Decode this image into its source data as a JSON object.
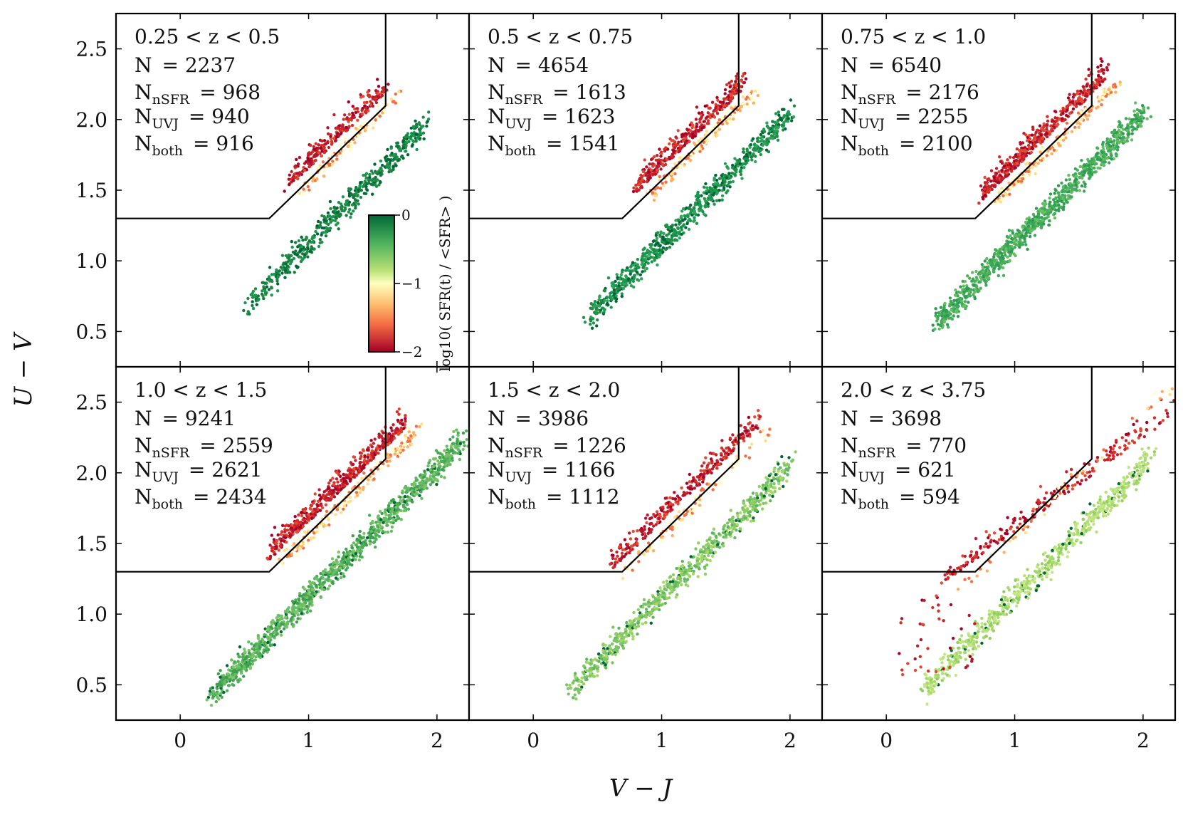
{
  "chart_data": {
    "type": "scatter",
    "xlabel": "V − J",
    "ylabel": "U − V",
    "xlim": [
      -0.5,
      2.25
    ],
    "ylim": [
      0.25,
      2.75
    ],
    "xticks": [
      "0",
      "1",
      "2"
    ],
    "yticks": [
      "0.5",
      "1.0",
      "1.5",
      "2.0",
      "2.5"
    ],
    "colorbar": {
      "label": "log10( SFR(t) / <SFR> )",
      "range": [
        -2,
        0
      ],
      "ticks": [
        "0",
        "−1",
        "−2"
      ],
      "colormap": "RdYlGn"
    },
    "uvj_boundary": {
      "u_v_min": 1.3,
      "v_j_max": 1.6,
      "slope": 0.88,
      "intercept": 0.69
    },
    "panels": [
      {
        "label": "0.25 < z < 0.5",
        "N": "2237",
        "N_nSFR": "968",
        "N_UVJ": "940",
        "N_both": "916",
        "quiescent_cloud": {
          "vj": [
            0.85,
            1.55
          ],
          "uv": [
            1.75,
            2.25
          ]
        },
        "starforming_cloud": {
          "vj": [
            0.45,
            1.9
          ],
          "uv": [
            0.65,
            2.15
          ]
        }
      },
      {
        "label": "0.5 < z < 0.75",
        "N": "4654",
        "N_nSFR": "1613",
        "N_UVJ": "1623",
        "N_both": "1541",
        "quiescent_cloud": {
          "vj": [
            0.8,
            1.6
          ],
          "uv": [
            1.6,
            2.3
          ]
        },
        "starforming_cloud": {
          "vj": [
            0.4,
            2.0
          ],
          "uv": [
            0.6,
            2.15
          ]
        }
      },
      {
        "label": "0.75 < z < 1.0",
        "N": "6540",
        "N_nSFR": "2176",
        "N_UVJ": "2255",
        "N_both": "2100",
        "quiescent_cloud": {
          "vj": [
            0.75,
            1.65
          ],
          "uv": [
            1.45,
            2.35
          ]
        },
        "starforming_cloud": {
          "vj": [
            0.35,
            2.0
          ],
          "uv": [
            0.55,
            2.1
          ]
        }
      },
      {
        "label": "1.0 < z < 1.5",
        "N": "9241",
        "N_nSFR": "2559",
        "N_UVJ": "2621",
        "N_both": "2434",
        "quiescent_cloud": {
          "vj": [
            0.7,
            1.7
          ],
          "uv": [
            1.3,
            2.35
          ]
        },
        "starforming_cloud": {
          "vj": [
            0.2,
            2.2
          ],
          "uv": [
            0.45,
            2.25
          ]
        }
      },
      {
        "label": "1.5 < z < 2.0",
        "N": "3986",
        "N_nSFR": "1226",
        "N_UVJ": "1166",
        "N_both": "1112",
        "quiescent_cloud": {
          "vj": [
            0.6,
            1.7
          ],
          "uv": [
            1.3,
            2.35
          ]
        },
        "starforming_cloud": {
          "vj": [
            0.25,
            2.0
          ],
          "uv": [
            0.35,
            2.15
          ]
        }
      },
      {
        "label": "2.0 < z < 3.75",
        "N": "3698",
        "N_nSFR": "770",
        "N_UVJ": "621",
        "N_both": "594",
        "quiescent_cloud": {
          "vj": [
            0.1,
            2.2
          ],
          "uv": [
            1.1,
            2.55
          ]
        },
        "starforming_cloud": {
          "vj": [
            0.2,
            2.1
          ],
          "uv": [
            0.3,
            2.2
          ]
        }
      }
    ]
  }
}
